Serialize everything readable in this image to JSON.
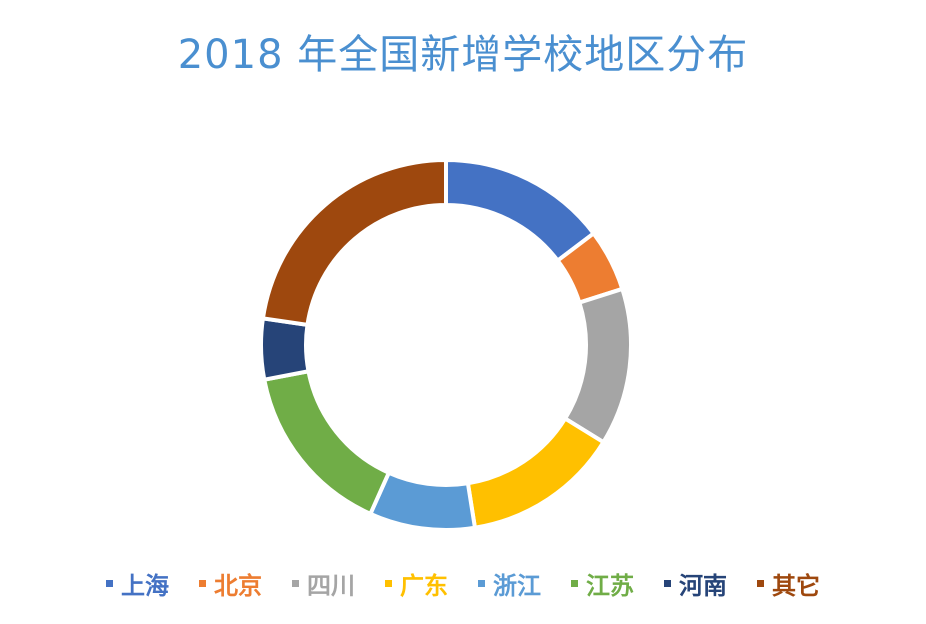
{
  "chart_data": {
    "type": "pie",
    "variant": "donut",
    "title": "2018 年全国新增学校地区分布",
    "unit": "percent (estimated share)",
    "categories": [
      "上海",
      "北京",
      "四川",
      "广东",
      "浙江",
      "江苏",
      "河南",
      "其它"
    ],
    "values": [
      14.7,
      5.4,
      13.7,
      13.7,
      9.2,
      15.3,
      5.3,
      22.7
    ],
    "colors": [
      "#4472c4",
      "#ed7d31",
      "#a5a5a5",
      "#ffc000",
      "#5b9bd5",
      "#70ad47",
      "#264478",
      "#9e480e"
    ],
    "legend_placement": "bottom",
    "start_angle": "12 o'clock, clockwise"
  }
}
